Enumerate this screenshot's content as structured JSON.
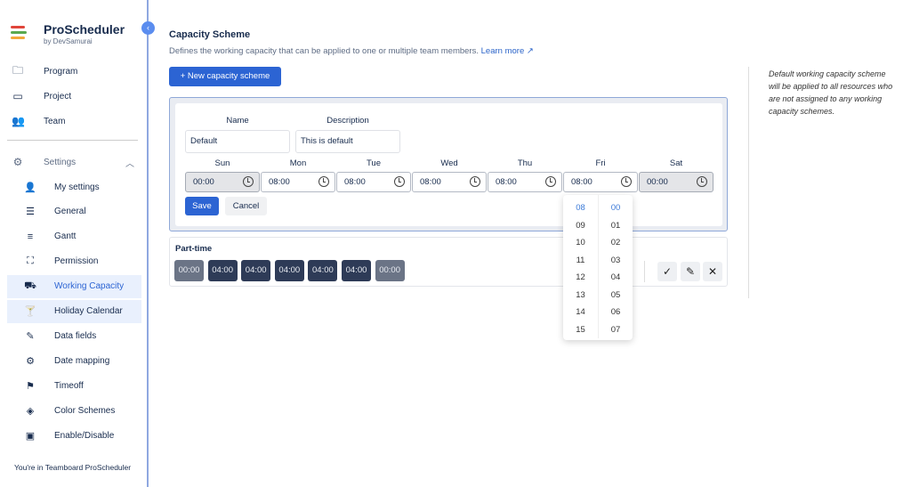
{
  "sidebar": {
    "brand": "ProScheduler",
    "by": "by DevSamurai",
    "items": [
      {
        "label": "Program",
        "icon": "folder-icon"
      },
      {
        "label": "Project",
        "icon": "window-icon"
      },
      {
        "label": "Team",
        "icon": "team-icon"
      }
    ],
    "settings": {
      "label": "Settings",
      "expanded": true
    },
    "sub_items": [
      {
        "label": "My settings",
        "icon": "user-gear-icon"
      },
      {
        "label": "General",
        "icon": "sliders-icon"
      },
      {
        "label": "Gantt",
        "icon": "gantt-icon"
      },
      {
        "label": "Permission",
        "icon": "sitemap-icon"
      },
      {
        "label": "Working Capacity",
        "icon": "truck-clock-icon",
        "active": true
      },
      {
        "label": "Holiday Calendar",
        "icon": "cocktail-icon"
      },
      {
        "label": "Data fields",
        "icon": "pencil-icon"
      },
      {
        "label": "Date mapping",
        "icon": "gear-icon"
      },
      {
        "label": "Timeoff",
        "icon": "flag-icon"
      },
      {
        "label": "Color Schemes",
        "icon": "paint-bucket-icon"
      },
      {
        "label": "Enable/Disable",
        "icon": "calendar-toggle-icon"
      }
    ],
    "footer": "You're in Teamboard ProScheduler"
  },
  "main": {
    "title": "Capacity Scheme",
    "description": "Defines the working capacity that can be applied to one or multiple team members.",
    "learn_more": "Learn more",
    "new_button": "+ New capacity scheme",
    "note": "Default working capacity scheme will be applied to all resources who are not assigned to any working capacity schemes.",
    "form": {
      "name_label": "Name",
      "name_value": "Default",
      "desc_label": "Description",
      "desc_value": "This is default",
      "days": [
        {
          "day": "Sun",
          "time": "00:00",
          "disabled": true
        },
        {
          "day": "Mon",
          "time": "08:00"
        },
        {
          "day": "Tue",
          "time": "08:00"
        },
        {
          "day": "Wed",
          "time": "08:00"
        },
        {
          "day": "Thu",
          "time": "08:00"
        },
        {
          "day": "Fri",
          "time": "08:00"
        },
        {
          "day": "Sat",
          "time": "00:00",
          "disabled": true
        }
      ],
      "save": "Save",
      "cancel": "Cancel"
    },
    "time_picker": {
      "hours": [
        "08",
        "09",
        "10",
        "11",
        "12",
        "13",
        "14",
        "15"
      ],
      "minutes": [
        "00",
        "01",
        "02",
        "03",
        "04",
        "05",
        "06",
        "07"
      ],
      "selected_hour": "08",
      "selected_minute": "00"
    },
    "schemes": [
      {
        "name": "Part-time",
        "hours": [
          "00:00",
          "04:00",
          "04:00",
          "04:00",
          "04:00",
          "04:00",
          "00:00"
        ]
      }
    ]
  },
  "colors": {
    "primary": "#2c64d3",
    "active_bg": "#e9f0fd",
    "chip": "#2e3b57"
  }
}
